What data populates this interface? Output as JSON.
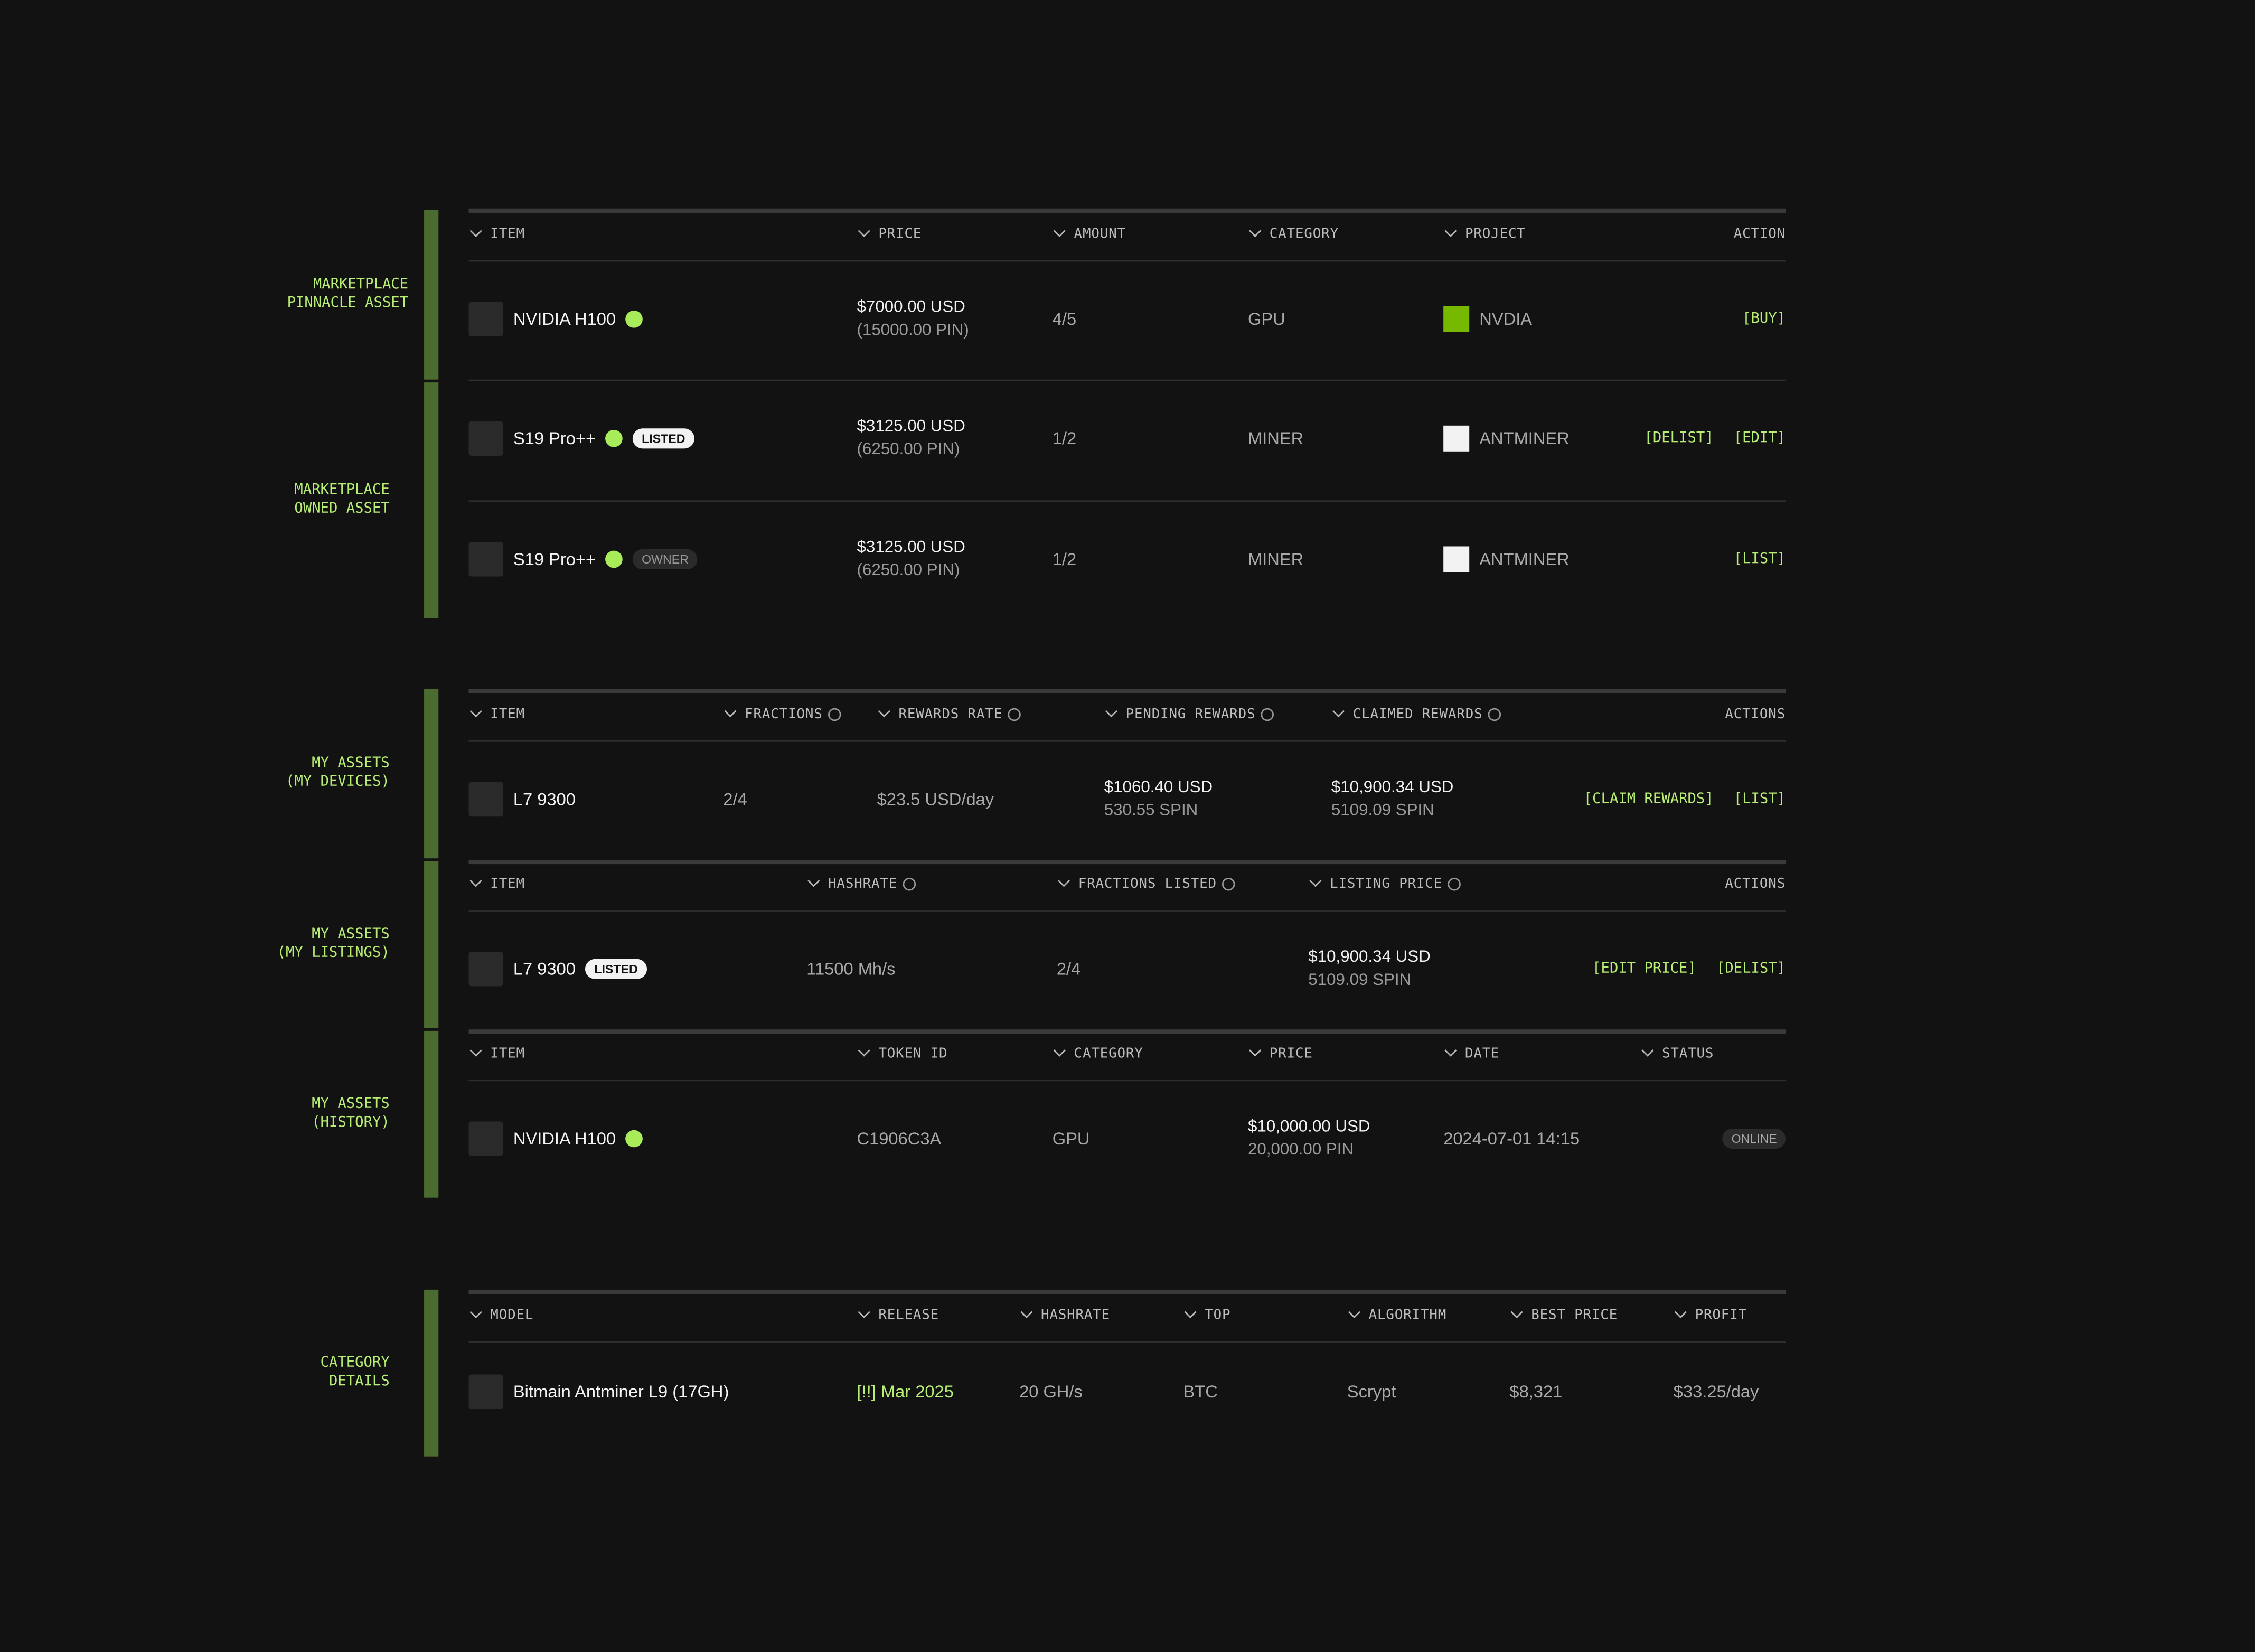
{
  "groups": [
    {
      "label": [
        "MARKETPLACE",
        "PINNACLE ASSET"
      ]
    },
    {
      "label": [
        "MARKETPLACE",
        "OWNED ASSET"
      ]
    },
    {
      "label": [
        "MY ASSETS",
        "(MY DEVICES)"
      ]
    },
    {
      "label": [
        "MY ASSETS",
        "(MY LISTINGS)"
      ]
    },
    {
      "label": [
        "MY ASSETS",
        "(HISTORY)"
      ]
    },
    {
      "label": [
        "CATEGORY",
        "DETAILS"
      ]
    }
  ],
  "tables": [
    {
      "headers": [
        {
          "label": "ITEM"
        },
        {
          "label": "PRICE"
        },
        {
          "label": "AMOUNT"
        },
        {
          "label": "CATEGORY"
        },
        {
          "label": "PROJECT"
        },
        {
          "label": "ACTION",
          "sortable": false
        }
      ],
      "rows": [
        {
          "cells": [
            {
              "name": "NVIDIA H100",
              "verified": true
            },
            {
              "main": "$7000.00 USD",
              "sub": "(15000.00 PIN)"
            },
            "4/5",
            "GPU",
            {
              "name": "NVDIA",
              "logo_color": "#76b900"
            },
            {
              "actions": [
                "[BUY]"
              ]
            }
          ]
        },
        {
          "cells": [
            {
              "name": "S19 Pro++",
              "verified": true,
              "badge": "LISTED",
              "badge_style": "light"
            },
            {
              "main": "$3125.00 USD",
              "sub": "(6250.00 PIN)"
            },
            "1/2",
            "MINER",
            {
              "name": "ANTMINER",
              "logo_color": "#f2f2f2"
            },
            {
              "actions": [
                "[DELIST]",
                "[EDIT]"
              ]
            }
          ]
        },
        {
          "cells": [
            {
              "name": "S19 Pro++",
              "verified": true,
              "badge": "OWNER",
              "badge_style": "dark"
            },
            {
              "main": "$3125.00 USD",
              "sub": "(6250.00 PIN)"
            },
            "1/2",
            "MINER",
            {
              "name": "ANTMINER",
              "logo_color": "#f2f2f2"
            },
            {
              "actions": [
                "[LIST]"
              ]
            }
          ]
        }
      ]
    },
    {
      "headers": [
        {
          "label": "ITEM"
        },
        {
          "label": "FRACTIONS",
          "info": true
        },
        {
          "label": "REWARDS RATE",
          "info": true
        },
        {
          "label": "PENDING REWARDS",
          "info": true
        },
        {
          "label": "CLAIMED REWARDS",
          "info": true
        },
        {
          "label": "ACTIONS",
          "sortable": false
        }
      ],
      "rows": [
        {
          "cells": [
            {
              "name": "L7 9300"
            },
            "2/4",
            "$23.5 USD/day",
            {
              "main": "$1060.40 USD",
              "sub": "530.55 SPIN"
            },
            {
              "main": "$10,900.34 USD",
              "sub": "5109.09 SPIN"
            },
            {
              "actions": [
                "[CLAIM REWARDS]",
                "[LIST]"
              ]
            }
          ]
        }
      ]
    },
    {
      "headers": [
        {
          "label": "ITEM"
        },
        {
          "label": "HASHRATE",
          "info": true
        },
        {
          "label": "FRACTIONS LISTED",
          "info": true
        },
        {
          "label": "LISTING PRICE",
          "info": true
        },
        {
          "label": "ACTIONS",
          "sortable": false
        }
      ],
      "rows": [
        {
          "cells": [
            {
              "name": "L7 9300",
              "badge": "LISTED",
              "badge_style": "light"
            },
            "11500 Mh/s",
            "2/4",
            {
              "main": "$10,900.34 USD",
              "sub": "5109.09 SPIN"
            },
            {
              "actions": [
                "[EDIT PRICE]",
                "[DELIST]"
              ]
            }
          ]
        }
      ]
    },
    {
      "headers": [
        {
          "label": "ITEM"
        },
        {
          "label": "TOKEN ID"
        },
        {
          "label": "CATEGORY"
        },
        {
          "label": "PRICE"
        },
        {
          "label": "DATE"
        },
        {
          "label": "STATUS"
        }
      ],
      "rows": [
        {
          "cells": [
            {
              "name": "NVIDIA H100",
              "verified": true
            },
            "C1906C3A",
            "GPU",
            {
              "main": "$10,000.00 USD",
              "sub": "20,000.00 PIN"
            },
            "2024-07-01 14:15",
            {
              "status": "ONLINE"
            }
          ]
        }
      ]
    },
    {
      "headers": [
        {
          "label": "MODEL"
        },
        {
          "label": "RELEASE"
        },
        {
          "label": "HASHRATE"
        },
        {
          "label": "TOP"
        },
        {
          "label": "ALGORITHM"
        },
        {
          "label": "BEST PRICE"
        },
        {
          "label": "PROFIT"
        }
      ],
      "rows": [
        {
          "cells": [
            {
              "name": "Bitmain Antminer L9 (17GH)"
            },
            {
              "text": "[!!] Mar 2025",
              "highlight": true
            },
            "20 GH/s",
            "BTC",
            "Scrypt",
            "$8,321",
            "$33.25/day"
          ]
        }
      ]
    }
  ]
}
